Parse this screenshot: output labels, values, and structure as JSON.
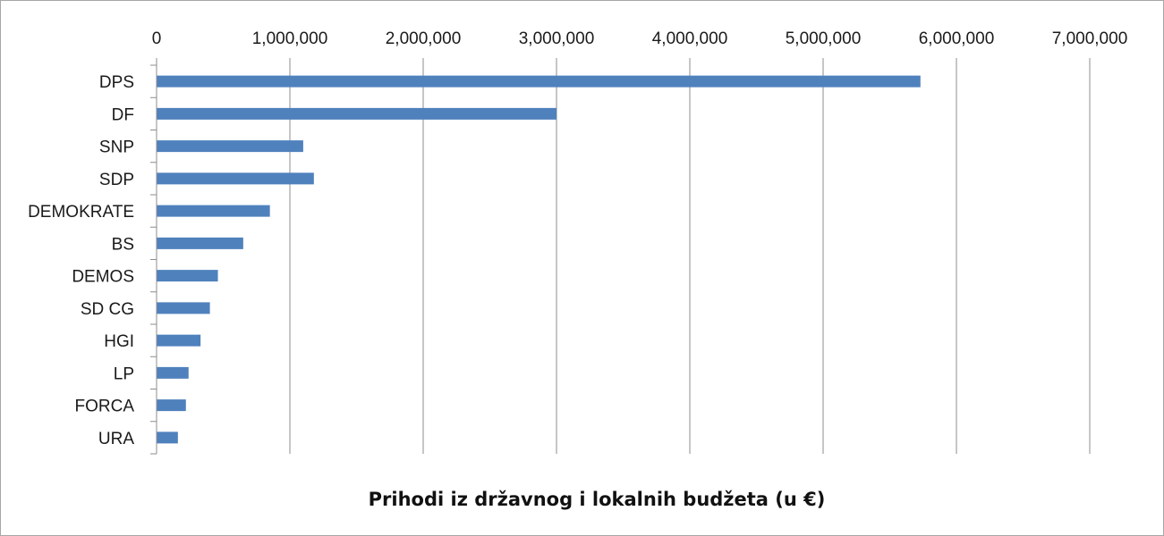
{
  "chart_data": {
    "type": "bar",
    "orientation": "horizontal",
    "title": "",
    "xlabel": "Prihodi iz državnog i lokalnih budžeta (u €)",
    "ylabel": "",
    "xlim": [
      0,
      7000000
    ],
    "x_ticks": [
      0,
      1000000,
      2000000,
      3000000,
      4000000,
      5000000,
      6000000,
      7000000
    ],
    "x_tick_labels": [
      "0",
      "1,000,000",
      "2,000,000",
      "3,000,000",
      "4,000,000",
      "5,000,000",
      "6,000,000",
      "7,000,000"
    ],
    "x_axis_position": "top",
    "grid": true,
    "legend": "none",
    "bar_color": "#4f81bd",
    "categories": [
      "DPS",
      "DF",
      "SNP",
      "SDP",
      "DEMOKRATE",
      "BS",
      "DEMOS",
      "SD CG",
      "HGI",
      "LP",
      "FORCA",
      "URA"
    ],
    "values": [
      5730000,
      3000000,
      1100000,
      1180000,
      850000,
      650000,
      460000,
      400000,
      330000,
      240000,
      220000,
      160000
    ]
  }
}
